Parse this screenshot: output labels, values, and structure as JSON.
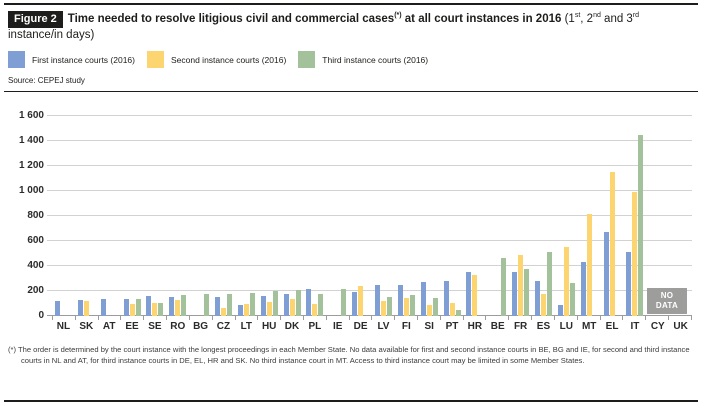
{
  "header": {
    "figure_label": "Figure 2",
    "title_bold_1": "Time needed to resolve litigious civil and commercial cases",
    "title_star": "(*)",
    "title_bold_2": " at all court instances in 2016",
    "paren_p1": " (1",
    "sup1": "st",
    "paren_p2": ", 2",
    "sup2": "nd",
    "paren_p3": " and 3",
    "sup3": "rd",
    "paren_p4": " instance/in days)"
  },
  "legend": {
    "items": [
      {
        "label": "First instance courts (2016)",
        "color": "#7f9fd4"
      },
      {
        "label": "Second instance courts (2016)",
        "color": "#fcd470"
      },
      {
        "label": "Third instance courts (2016)",
        "color": "#a3c29c"
      }
    ]
  },
  "source": "Source: CEPEJ study",
  "no_data_label": "NO\nDATA",
  "footnote": "(*) The order is determined by the court instance with the longest proceedings in each Member State. No data available for first and second instance courts in BE, BG and IE, for second and third instance courts in NL and AT, for third instance courts in DE, EL, HR and SK. No third instance court in MT. Access to third instance court may be limited in some Member States.",
  "chart_data": {
    "type": "bar",
    "title": "Time needed to resolve litigious civil and commercial cases (*) at all court instances in 2016 (1st, 2nd and 3rd instance/in days)",
    "xlabel": "",
    "ylabel": "days",
    "ylim": [
      0,
      1600
    ],
    "ytick_interval": 200,
    "ytick_labels": [
      "0",
      "200",
      "400",
      "600",
      "800",
      "1 000",
      "1 200",
      "1 400",
      "1 600"
    ],
    "grid": true,
    "legend_position": "top",
    "categories": [
      "NL",
      "SK",
      "AT",
      "EE",
      "SE",
      "RO",
      "BG",
      "CZ",
      "LT",
      "HU",
      "DK",
      "PL",
      "IE",
      "DE",
      "LV",
      "FI",
      "SI",
      "PT",
      "HR",
      "BE",
      "FR",
      "ES",
      "LU",
      "MT",
      "EL",
      "IT",
      "CY",
      "UK"
    ],
    "series": [
      {
        "name": "First instance courts (2016)",
        "color": "#7f9fd4",
        "values": [
          121,
          130,
          134,
          140,
          163,
          150,
          null,
          150,
          85,
          158,
          175,
          216,
          null,
          196,
          245,
          250,
          276,
          281,
          355,
          null,
          354,
          282,
          90,
          432,
          670,
          514,
          null,
          null
        ]
      },
      {
        "name": "Second instance courts (2016)",
        "color": "#fcd470",
        "values": [
          null,
          120,
          null,
          94,
          102,
          126,
          null,
          65,
          100,
          112,
          140,
          100,
          null,
          243,
          119,
          146,
          88,
          108,
          330,
          null,
          485,
          174,
          555,
          820,
          1150,
          990,
          null,
          null
        ]
      },
      {
        "name": "Third instance courts (2016)",
        "color": "#a3c29c",
        "values": [
          null,
          null,
          null,
          133,
          107,
          170,
          173,
          180,
          182,
          200,
          205,
          176,
          218,
          null,
          155,
          165,
          148,
          49,
          null,
          465,
          375,
          510,
          268,
          null,
          null,
          1450,
          null,
          null
        ]
      }
    ],
    "no_data_categories": [
      "CY",
      "UK"
    ]
  }
}
